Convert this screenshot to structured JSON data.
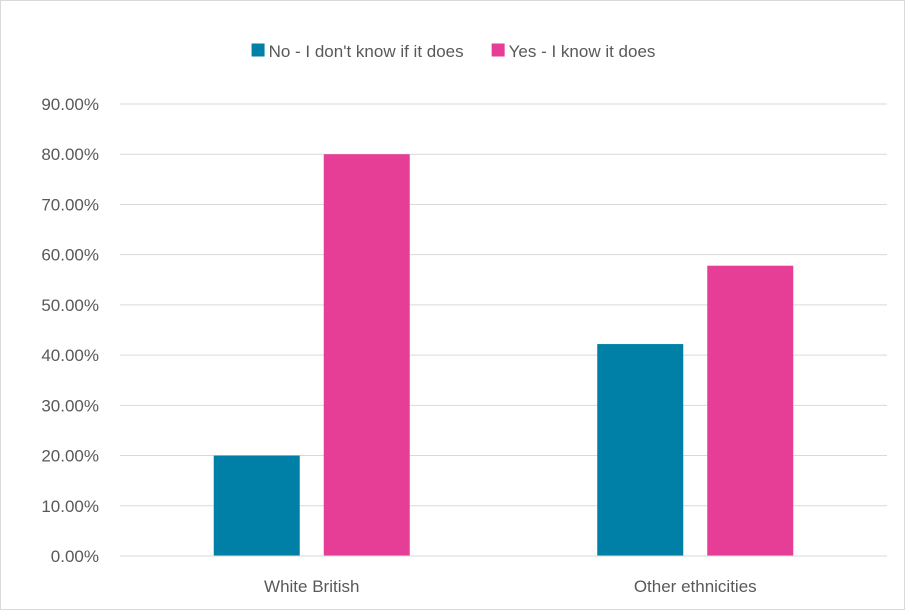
{
  "chart_data": {
    "type": "bar",
    "categories": [
      "White British",
      "Other ethnicities"
    ],
    "series": [
      {
        "name": "No - I don't know if it does",
        "values": [
          20.0,
          42.2
        ],
        "color": "#0080A6"
      },
      {
        "name": "Yes - I know it does",
        "values": [
          80.0,
          57.8
        ],
        "color": "#E63E96"
      }
    ],
    "y_ticks": [
      "0.00%",
      "10.00%",
      "20.00%",
      "30.00%",
      "40.00%",
      "50.00%",
      "60.00%",
      "70.00%",
      "80.00%",
      "90.00%"
    ],
    "ylim": [
      0,
      90
    ],
    "grid": true,
    "legend_position": "top-center",
    "title": "",
    "xlabel": "",
    "ylabel": ""
  }
}
